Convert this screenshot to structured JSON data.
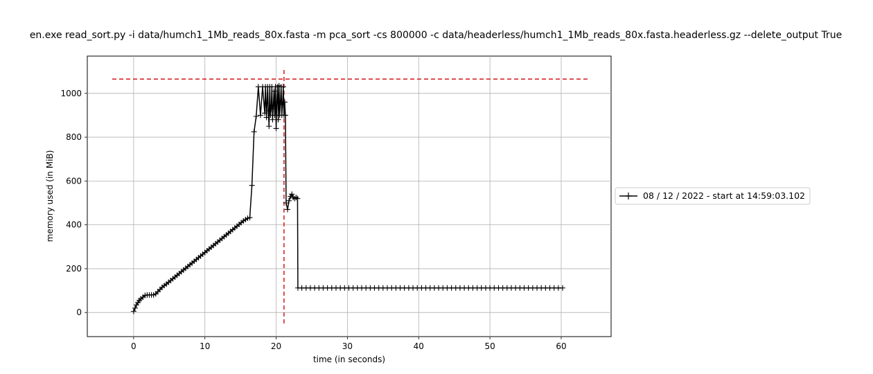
{
  "chart_data": {
    "type": "line",
    "title": "en.exe read_sort.py -i data/humch1_1Mb_reads_80x.fasta -m pca_sort -cs 800000 -c data/headerless/humch1_1Mb_reads_80x.fasta.headerless.gz --delete_output True",
    "xlabel": "time (in seconds)",
    "ylabel": "memory used (in MiB)",
    "xlim": [
      -6.5,
      67
    ],
    "ylim": [
      -110,
      1170
    ],
    "x_ticks": [
      0,
      10,
      20,
      30,
      40,
      50,
      60
    ],
    "y_ticks": [
      0,
      200,
      400,
      600,
      800,
      1000
    ],
    "grid": true,
    "legend_position": "right",
    "series": [
      {
        "name": "08 / 12 / 2022 - start at 14:59:03.102",
        "color": "#000000",
        "marker": "+",
        "x": [
          0.0,
          0.2,
          0.4,
          0.6,
          0.8,
          1.0,
          1.3,
          1.6,
          1.9,
          2.2,
          2.5,
          2.8,
          3.1,
          3.4,
          3.7,
          4.0,
          4.3,
          4.6,
          4.9,
          5.2,
          5.5,
          5.8,
          6.1,
          6.4,
          6.7,
          7.0,
          7.3,
          7.6,
          7.9,
          8.2,
          8.5,
          8.8,
          9.1,
          9.4,
          9.7,
          10.0,
          10.3,
          10.6,
          10.9,
          11.2,
          11.5,
          11.8,
          12.1,
          12.4,
          12.7,
          13.0,
          13.3,
          13.6,
          13.9,
          14.2,
          14.5,
          14.8,
          15.1,
          15.4,
          15.7,
          16.0,
          16.3,
          16.6,
          16.9,
          17.2,
          17.5,
          17.8,
          18.1,
          18.4,
          18.5,
          18.65,
          18.8,
          18.9,
          19.0,
          19.1,
          19.2,
          19.3,
          19.4,
          19.5,
          19.6,
          19.7,
          19.8,
          19.9,
          20.0,
          20.1,
          20.2,
          20.3,
          20.4,
          20.5,
          20.6,
          20.7,
          20.8,
          20.9,
          21.0,
          21.1,
          21.2,
          21.3,
          21.4,
          21.6,
          21.8,
          22.0,
          22.2,
          22.4,
          22.6,
          22.8,
          23.0
        ],
        "y": [
          5,
          20,
          35,
          45,
          55,
          62,
          70,
          78,
          80,
          80,
          80,
          80,
          85,
          95,
          105,
          115,
          123,
          130,
          138,
          146,
          154,
          162,
          170,
          178,
          186,
          194,
          202,
          210,
          218,
          226,
          234,
          242,
          250,
          258,
          266,
          274,
          282,
          290,
          298,
          306,
          314,
          322,
          330,
          338,
          346,
          354,
          362,
          370,
          378,
          386,
          394,
          402,
          410,
          418,
          424,
          430,
          433,
          580,
          825,
          895,
          1030,
          900,
          1030,
          910,
          1030,
          890,
          1030,
          920,
          850,
          1030,
          900,
          930,
          1030,
          880,
          940,
          1010,
          900,
          1030,
          840,
          960,
          1030,
          880,
          1035,
          900,
          960,
          1030,
          900,
          950,
          1030,
          900,
          960,
          900,
          500,
          470,
          510,
          530,
          540,
          525,
          520,
          525,
          520
        ],
        "tail_start_x": 23.0,
        "tail_end_x": 60.5,
        "tail_step": 0.6,
        "tail_y": 112,
        "tail_drop_from_y": 520
      }
    ],
    "reference_lines": [
      {
        "type": "horizontal",
        "y": 1065,
        "x_from": -3.0,
        "x_to": 63.8,
        "color": "#d62728",
        "style": "dashed"
      },
      {
        "type": "vertical",
        "x": 21.1,
        "y_from": -50,
        "y_to": 1120,
        "color": "#d62728",
        "style": "dashed"
      }
    ]
  }
}
